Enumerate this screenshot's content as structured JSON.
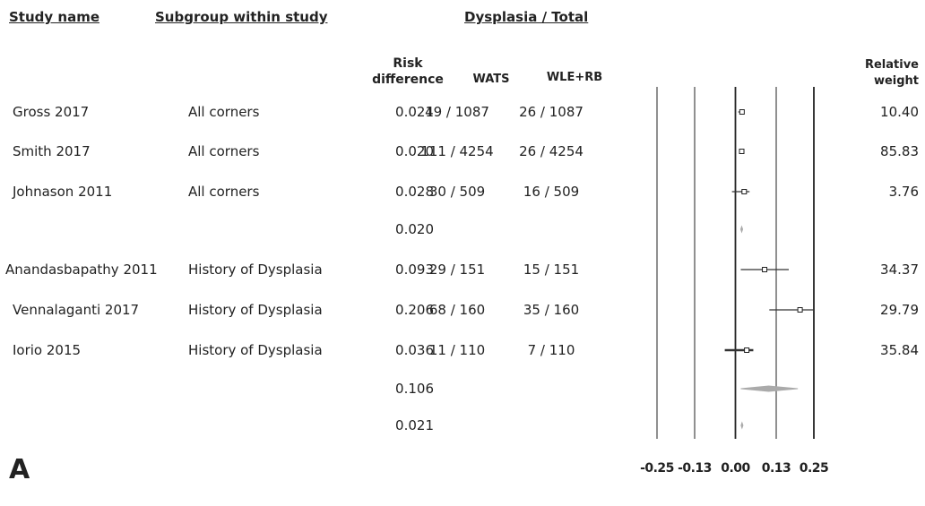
{
  "chart_data": {
    "type": "forest",
    "panel_label": "A",
    "headers": {
      "study": "Study name",
      "subgroup": "Subgroup within study",
      "group": "Dysplasia / Total",
      "effect": "Risk difference",
      "wats": "WATS",
      "wle": "WLE+RB",
      "weight": "Relative weight"
    },
    "studies": [
      "Gross 2017",
      "Smith 2017",
      "Johnason 2011",
      null,
      "Anandasbapathy 2011",
      "Vennalaganti 2017",
      "Iorio 2015",
      null,
      null
    ],
    "subgroups": [
      "All corners",
      "All corners",
      "All corners",
      null,
      "History of Dysplasia",
      "History of Dysplasia",
      "History of Dysplasia",
      null,
      null
    ],
    "values": [
      0.021,
      0.02,
      0.028,
      0.02,
      0.093,
      0.206,
      0.036,
      0.106,
      0.021
    ],
    "value_labels": [
      "0.021",
      "0.020",
      "0.028",
      "0.020",
      "0.093",
      "0.206",
      "0.036",
      "0.106",
      "0.021"
    ],
    "ci_low": [
      0.009,
      0.017,
      -0.011,
      0.017,
      0.017,
      0.108,
      -0.034,
      0.017,
      0.018
    ],
    "ci_high": [
      0.023,
      0.023,
      0.045,
      0.023,
      0.17,
      0.25,
      0.057,
      0.199,
      0.024
    ],
    "summary": [
      false,
      false,
      false,
      true,
      false,
      false,
      false,
      true,
      true
    ],
    "wats": [
      "49 / 1087",
      "111 / 4254",
      "30 / 509",
      null,
      "29 / 151",
      "68 / 160",
      "11 / 110",
      null,
      null
    ],
    "wle": [
      "26 / 1087",
      "26 / 4254",
      "16 / 509",
      null,
      "15 / 151",
      "35 / 160",
      "7 / 110",
      null,
      null
    ],
    "weights": [
      10.4,
      85.83,
      3.76,
      null,
      34.37,
      29.79,
      35.84,
      null,
      null
    ],
    "weight_labels": [
      "10.40",
      "85.83",
      "3.76",
      null,
      "34.37",
      "29.79",
      "35.84",
      null,
      null
    ],
    "xlim": [
      -0.25,
      0.25
    ],
    "xticks": [
      -0.25,
      -0.13,
      {
        "value": 0,
        "label": "0.00"
      },
      0.13,
      0.25
    ]
  }
}
